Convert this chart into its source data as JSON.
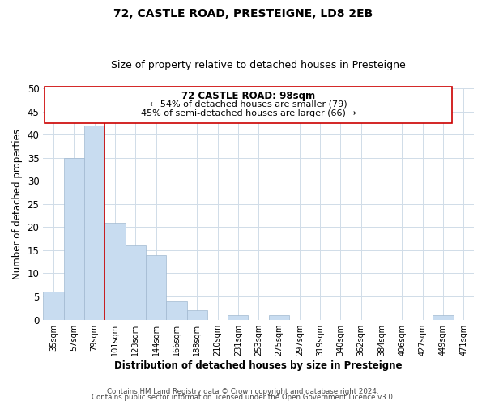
{
  "title": "72, CASTLE ROAD, PRESTEIGNE, LD8 2EB",
  "subtitle": "Size of property relative to detached houses in Presteigne",
  "xlabel": "Distribution of detached houses by size in Presteigne",
  "ylabel": "Number of detached properties",
  "bin_labels": [
    "35sqm",
    "57sqm",
    "79sqm",
    "101sqm",
    "123sqm",
    "144sqm",
    "166sqm",
    "188sqm",
    "210sqm",
    "231sqm",
    "253sqm",
    "275sqm",
    "297sqm",
    "319sqm",
    "340sqm",
    "362sqm",
    "384sqm",
    "406sqm",
    "427sqm",
    "449sqm",
    "471sqm"
  ],
  "bar_heights": [
    6,
    35,
    42,
    21,
    16,
    14,
    4,
    2,
    0,
    1,
    0,
    1,
    0,
    0,
    0,
    0,
    0,
    0,
    0,
    1,
    0
  ],
  "bar_color": "#c8dcf0",
  "bar_edge_color": "#a0b8d0",
  "highlight_line_color": "#cc0000",
  "annotation_text1": "72 CASTLE ROAD: 98sqm",
  "annotation_text2": "← 54% of detached houses are smaller (79)",
  "annotation_text3": "45% of semi-detached houses are larger (66) →",
  "ylim": [
    0,
    50
  ],
  "yticks": [
    0,
    5,
    10,
    15,
    20,
    25,
    30,
    35,
    40,
    45,
    50
  ],
  "footer1": "Contains HM Land Registry data © Crown copyright and database right 2024.",
  "footer2": "Contains public sector information licensed under the Open Government Licence v3.0.",
  "bg_color": "#ffffff",
  "grid_color": "#d0dce8"
}
